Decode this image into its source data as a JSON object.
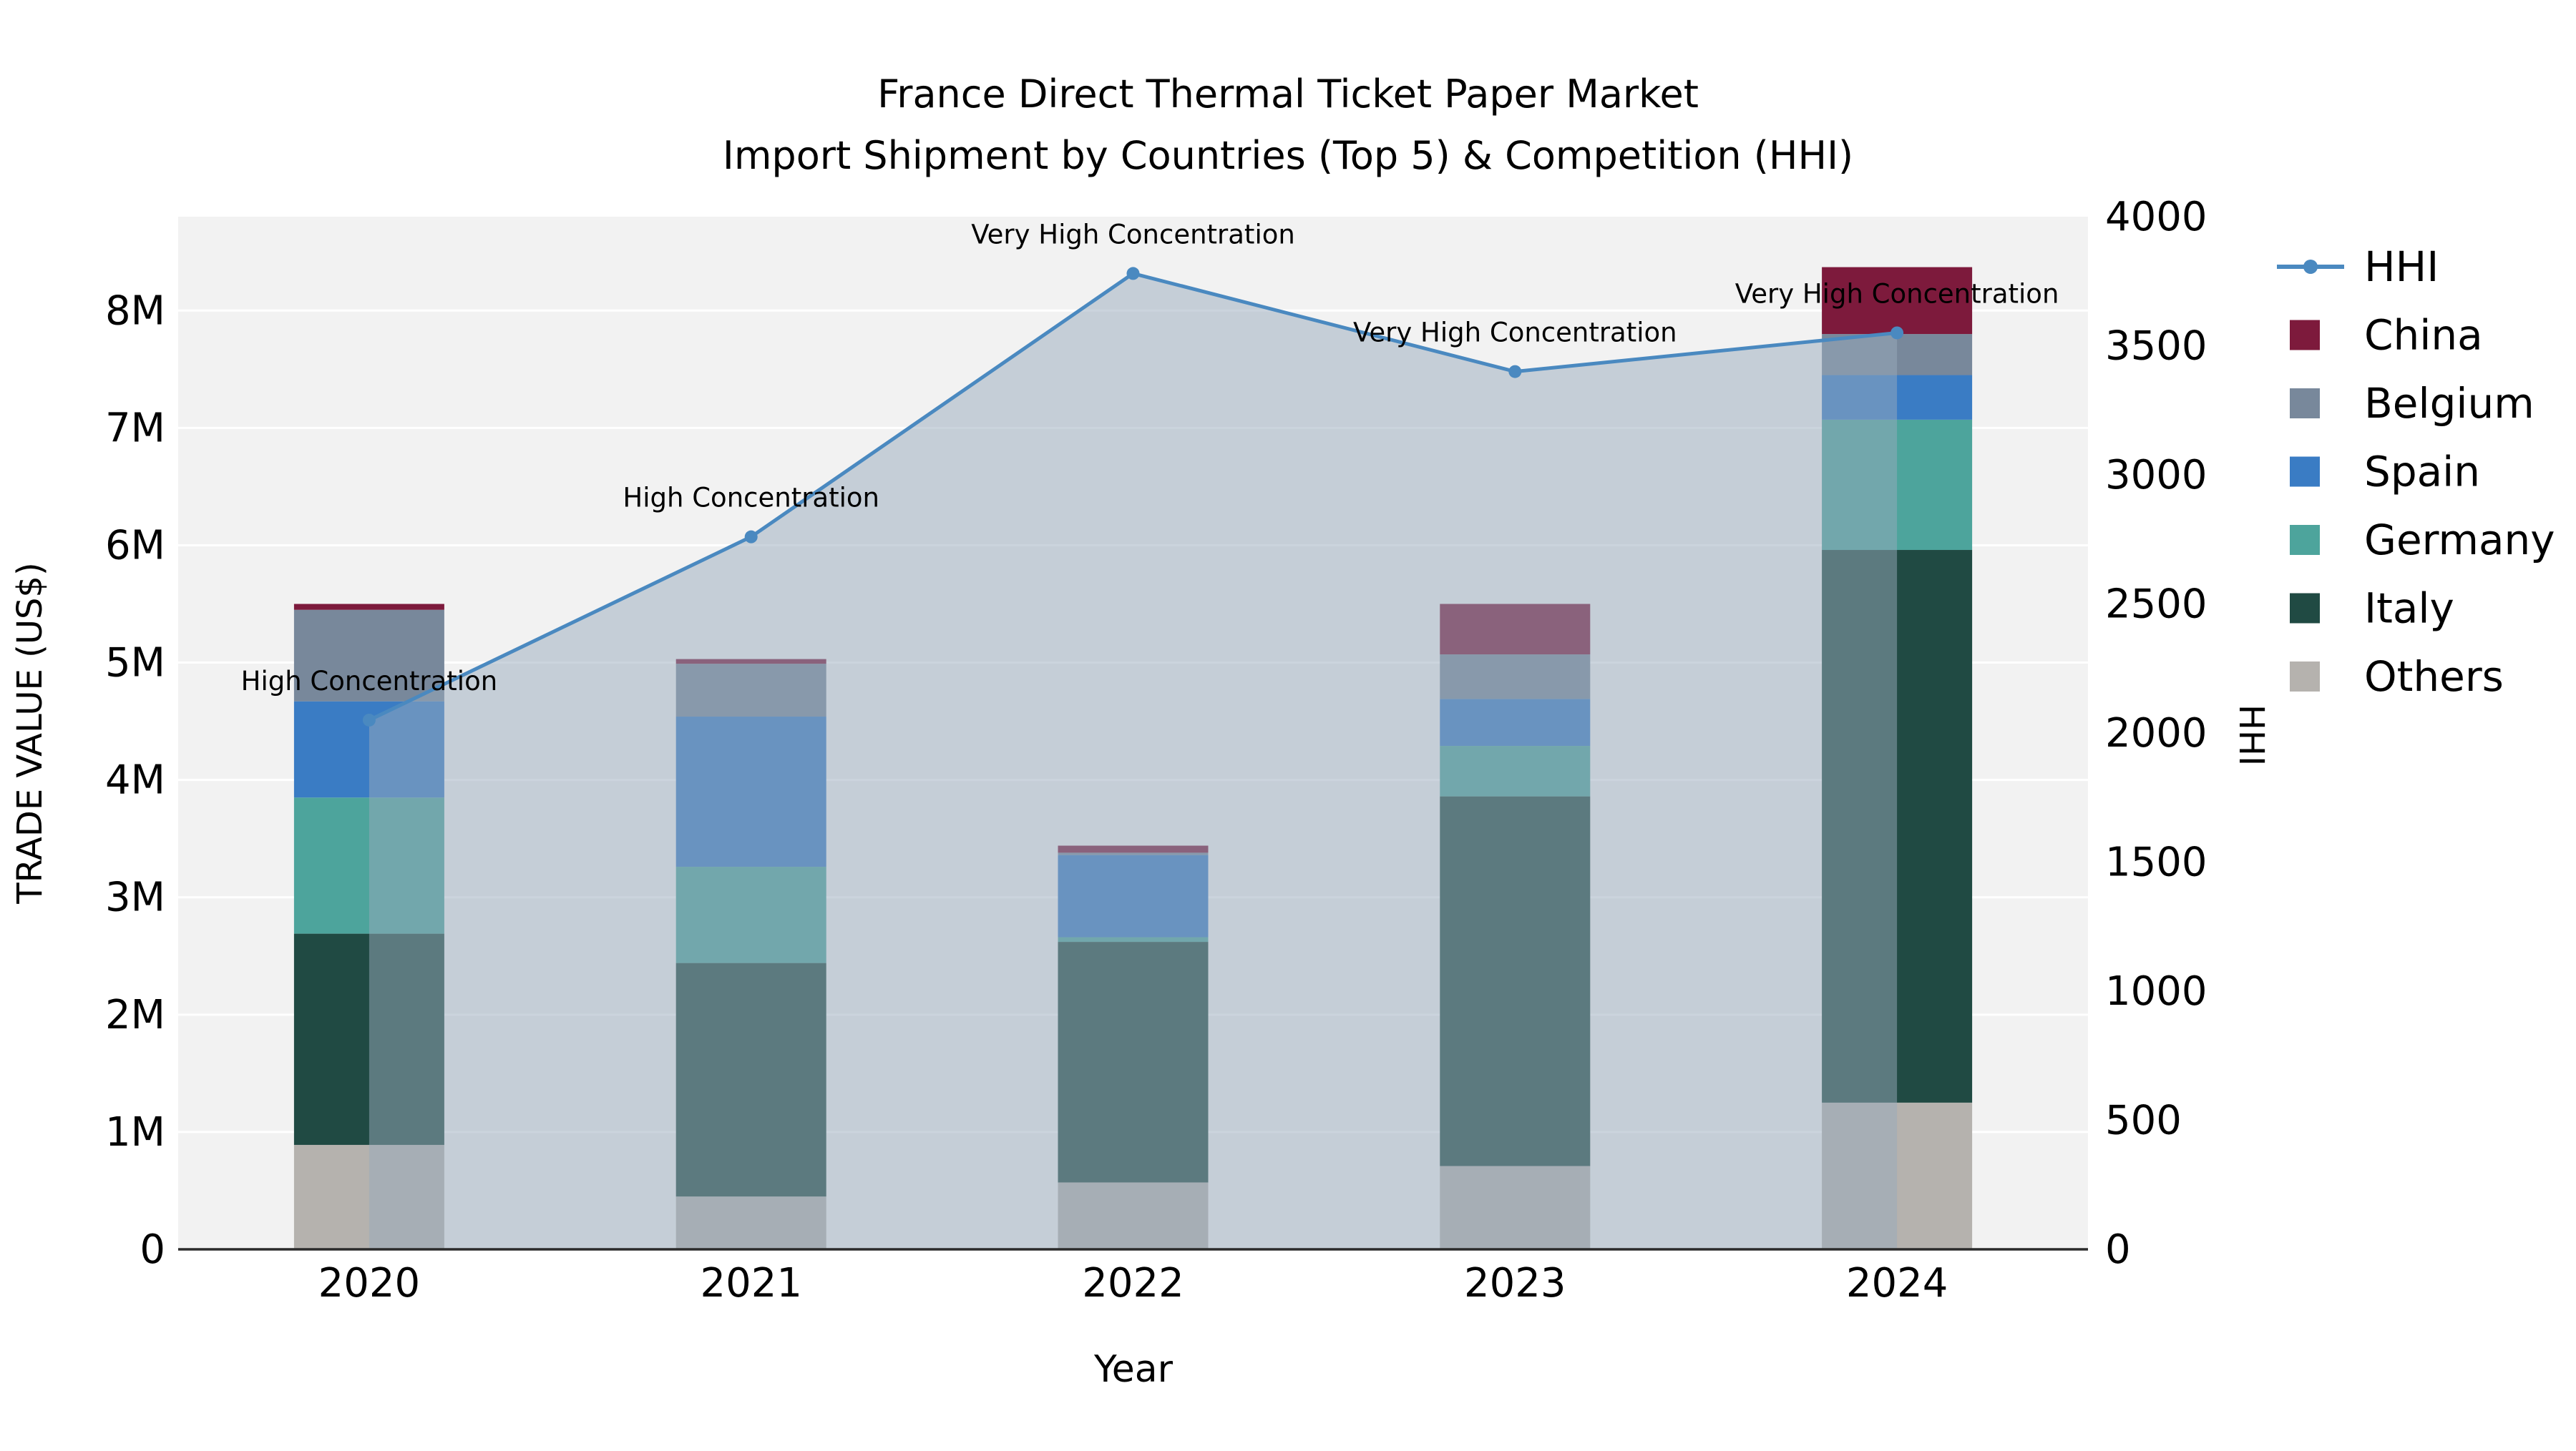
{
  "title": {
    "line1": "France Direct Thermal Ticket Paper Market",
    "line2": "Import Shipment by Countries (Top 5) & Competition (HHI)"
  },
  "axes": {
    "x_title": "Year",
    "y_left_title": "TRADE VALUE (US$)",
    "y_right_title": "HHI",
    "y_left_ticks": [
      "0",
      "1M",
      "2M",
      "3M",
      "4M",
      "5M",
      "6M",
      "7M",
      "8M"
    ],
    "y_left_max_musd": 8.8,
    "y_right_ticks": [
      "0",
      "500",
      "1000",
      "1500",
      "2000",
      "2500",
      "3000",
      "3500",
      "4000"
    ],
    "y_right_max": 4000
  },
  "chart_data": {
    "type": "combo: stacked bar (trade value) + line with area (HHI)",
    "categories": [
      "2020",
      "2021",
      "2022",
      "2023",
      "2024"
    ],
    "bar_unit": "million US$",
    "bar_series": [
      {
        "name": "Others",
        "color": "#b5b2ae",
        "values_musd": [
          0.89,
          0.45,
          0.57,
          0.71,
          1.25
        ]
      },
      {
        "name": "Italy",
        "color": "#204a43",
        "values_musd": [
          1.8,
          1.99,
          2.05,
          3.15,
          4.71
        ]
      },
      {
        "name": "Germany",
        "color": "#4da49c",
        "values_musd": [
          1.16,
          0.82,
          0.04,
          0.43,
          1.11
        ]
      },
      {
        "name": "Spain",
        "color": "#3a7cc4",
        "values_musd": [
          0.82,
          1.28,
          0.7,
          0.4,
          0.38
        ]
      },
      {
        "name": "Belgium",
        "color": "#78889b",
        "values_musd": [
          0.78,
          0.45,
          0.02,
          0.38,
          0.35
        ]
      },
      {
        "name": "China",
        "color": "#7d1a3c",
        "values_musd": [
          0.05,
          0.04,
          0.06,
          0.43,
          0.57
        ]
      }
    ],
    "bar_totals_musd": [
      5.5,
      5.03,
      3.44,
      5.5,
      8.37
    ],
    "hhi": {
      "name": "HHI",
      "color": "#4a89c0",
      "values": [
        2050,
        2760,
        3780,
        3400,
        3550
      ]
    },
    "annotations": [
      "High Concentration",
      "High Concentration",
      "Very High Concentration",
      "Very High Concentration",
      "Very High Concentration"
    ]
  },
  "legend": {
    "items": [
      {
        "label": "HHI",
        "type": "line",
        "color": "#4a89c0"
      },
      {
        "label": "China",
        "type": "swatch",
        "color": "#7d1a3c"
      },
      {
        "label": "Belgium",
        "type": "swatch",
        "color": "#78889b"
      },
      {
        "label": "Spain",
        "type": "swatch",
        "color": "#3a7cc4"
      },
      {
        "label": "Germany",
        "type": "swatch",
        "color": "#4da49c"
      },
      {
        "label": "Italy",
        "type": "swatch",
        "color": "#204a43"
      },
      {
        "label": "Others",
        "type": "swatch",
        "color": "#b5b2ae"
      }
    ]
  },
  "colors": {
    "figure_bg": "#ffffff",
    "plot_bg": "#f2f2f2",
    "grid": "#ffffff",
    "area_fill": "rgba(152,169,188,0.5)",
    "axis_line": "#2b2b2b",
    "text": "#000000"
  }
}
